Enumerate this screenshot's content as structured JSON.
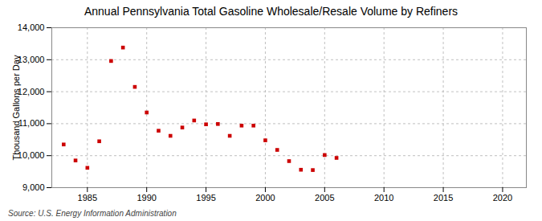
{
  "chart_data": {
    "type": "scatter",
    "title": "Annual Pennsylvania Total Gasoline Wholesale/Resale Volume by Refiners",
    "ylabel": "Thousand Gallons per Day",
    "source": "Source: U.S. Energy Information Administration",
    "x": [
      1983,
      1984,
      1985,
      1986,
      1987,
      1988,
      1989,
      1990,
      1991,
      1992,
      1993,
      1994,
      1995,
      1996,
      1997,
      1998,
      1999,
      2000,
      2001,
      2002,
      2003,
      2004,
      2005,
      2006
    ],
    "values": [
      10350,
      9850,
      9620,
      10450,
      12960,
      13380,
      12150,
      11350,
      10780,
      10620,
      10880,
      11100,
      10980,
      10990,
      10620,
      10940,
      10940,
      10480,
      10180,
      9830,
      9560,
      9550,
      10020,
      9930
    ],
    "color": "#cc0000",
    "marker": "square",
    "xlim": [
      1982,
      2022
    ],
    "ylim": [
      9000,
      14000
    ],
    "xticks": [
      1985,
      1990,
      1995,
      2000,
      2005,
      2010,
      2015,
      2020
    ],
    "yticks": [
      {
        "value": 9000,
        "label": "9,000"
      },
      {
        "value": 10000,
        "label": "10,000"
      },
      {
        "value": 11000,
        "label": "11,000"
      },
      {
        "value": 12000,
        "label": "12,000"
      },
      {
        "value": 13000,
        "label": "13,000"
      },
      {
        "value": 14000,
        "label": "14,000"
      }
    ],
    "grid": true
  }
}
